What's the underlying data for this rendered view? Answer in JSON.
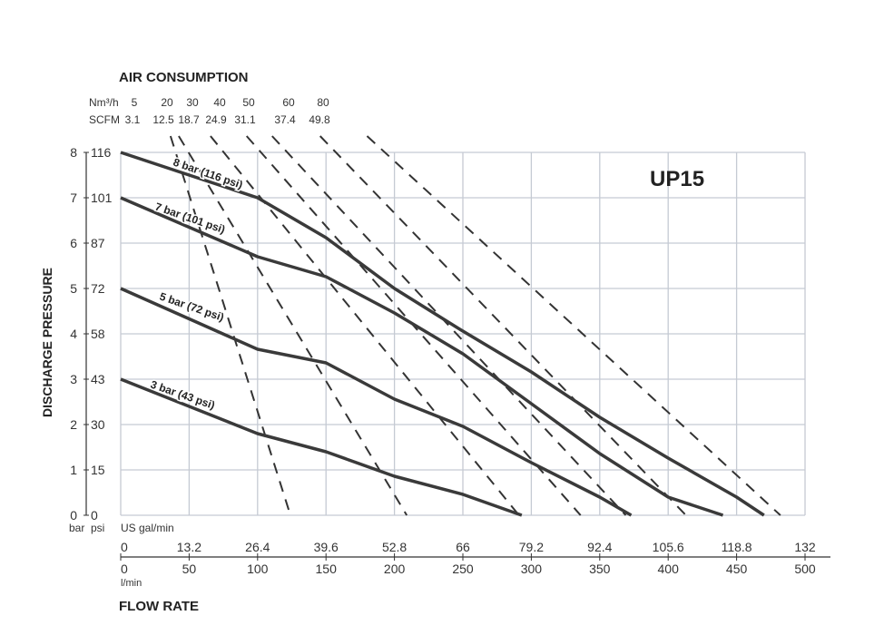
{
  "chart_data": {
    "type": "line",
    "title": "UP15",
    "air_title": "AIR CONSUMPTION",
    "air_units": [
      "Nm³/h",
      "SCFM"
    ],
    "air_labels_nm3h": [
      "5",
      "20",
      "30",
      "40",
      "50",
      "60",
      "80"
    ],
    "air_labels_scfm": [
      "3.1",
      "12.5",
      "18.7",
      "24.9",
      "31.1",
      "37.4",
      "49.8"
    ],
    "ylabel": "DISCHARGE PRESSURE",
    "y_units": [
      "bar",
      "psi"
    ],
    "y_ticks_bar": [
      "0",
      "1",
      "2",
      "3",
      "4",
      "5",
      "6",
      "7",
      "8"
    ],
    "y_ticks_psi": [
      "0",
      "15",
      "30",
      "43",
      "58",
      "72",
      "87",
      "101",
      "116"
    ],
    "ylim": [
      0,
      8
    ],
    "xlabel": "FLOW RATE",
    "x_unit_gpm": "US gal/min",
    "x_unit_lmin": "l/min",
    "x_ticks_gpm": [
      "0",
      "13.2",
      "26.4",
      "39.6",
      "52.8",
      "66",
      "79.2",
      "92.4",
      "105.6",
      "118.8",
      "132"
    ],
    "x_ticks_lmin": [
      "0",
      "50",
      "100",
      "150",
      "200",
      "250",
      "300",
      "350",
      "400",
      "450",
      "500"
    ],
    "xlim": [
      0,
      500
    ],
    "grid": true,
    "series": [
      {
        "name": "8 bar (116 psi)",
        "points": [
          [
            0,
            8
          ],
          [
            100,
            7
          ],
          [
            150,
            6.12
          ],
          [
            200,
            5
          ],
          [
            250,
            4.06
          ],
          [
            300,
            3.16
          ],
          [
            350,
            2.16
          ],
          [
            400,
            1.26
          ],
          [
            450,
            0.4
          ],
          [
            470,
            0
          ]
        ]
      },
      {
        "name": "7 bar (101 psi)",
        "points": [
          [
            0,
            7
          ],
          [
            100,
            5.7
          ],
          [
            150,
            5.26
          ],
          [
            200,
            4.46
          ],
          [
            250,
            3.56
          ],
          [
            300,
            2.46
          ],
          [
            350,
            1.36
          ],
          [
            400,
            0.4
          ],
          [
            440,
            0
          ]
        ]
      },
      {
        "name": "5 bar (72 psi)",
        "points": [
          [
            0,
            5
          ],
          [
            100,
            3.66
          ],
          [
            150,
            3.36
          ],
          [
            200,
            2.56
          ],
          [
            250,
            1.96
          ],
          [
            300,
            1.16
          ],
          [
            350,
            0.4
          ],
          [
            373,
            0
          ]
        ]
      },
      {
        "name": "3 bar (43 psi)",
        "points": [
          [
            0,
            3
          ],
          [
            100,
            1.8
          ],
          [
            150,
            1.4
          ],
          [
            200,
            0.86
          ],
          [
            250,
            0.46
          ],
          [
            293,
            0
          ]
        ]
      }
    ],
    "air_lines": [
      {
        "nm3h": 5,
        "points": [
          [
            36.4,
            8.36
          ],
          [
            124,
            0
          ]
        ]
      },
      {
        "nm3h": 20,
        "points": [
          [
            42.4,
            8.36
          ],
          [
            209,
            0
          ]
        ]
      },
      {
        "nm3h": 30,
        "points": [
          [
            65.6,
            8.36
          ],
          [
            291,
            0
          ]
        ]
      },
      {
        "nm3h": 40,
        "points": [
          [
            92,
            8.36
          ],
          [
            336,
            0
          ]
        ]
      },
      {
        "nm3h": 50,
        "points": [
          [
            110.6,
            8.36
          ],
          [
            369,
            0
          ]
        ]
      },
      {
        "nm3h": 60,
        "points": [
          [
            145.7,
            8.36
          ],
          [
            413,
            0
          ]
        ]
      },
      {
        "nm3h": 80,
        "points": [
          [
            180,
            8.36
          ],
          [
            482,
            0
          ]
        ]
      }
    ],
    "colors": {
      "curve": "#3a3a3a",
      "grid": "#c5cad3",
      "text": "#222222"
    }
  }
}
